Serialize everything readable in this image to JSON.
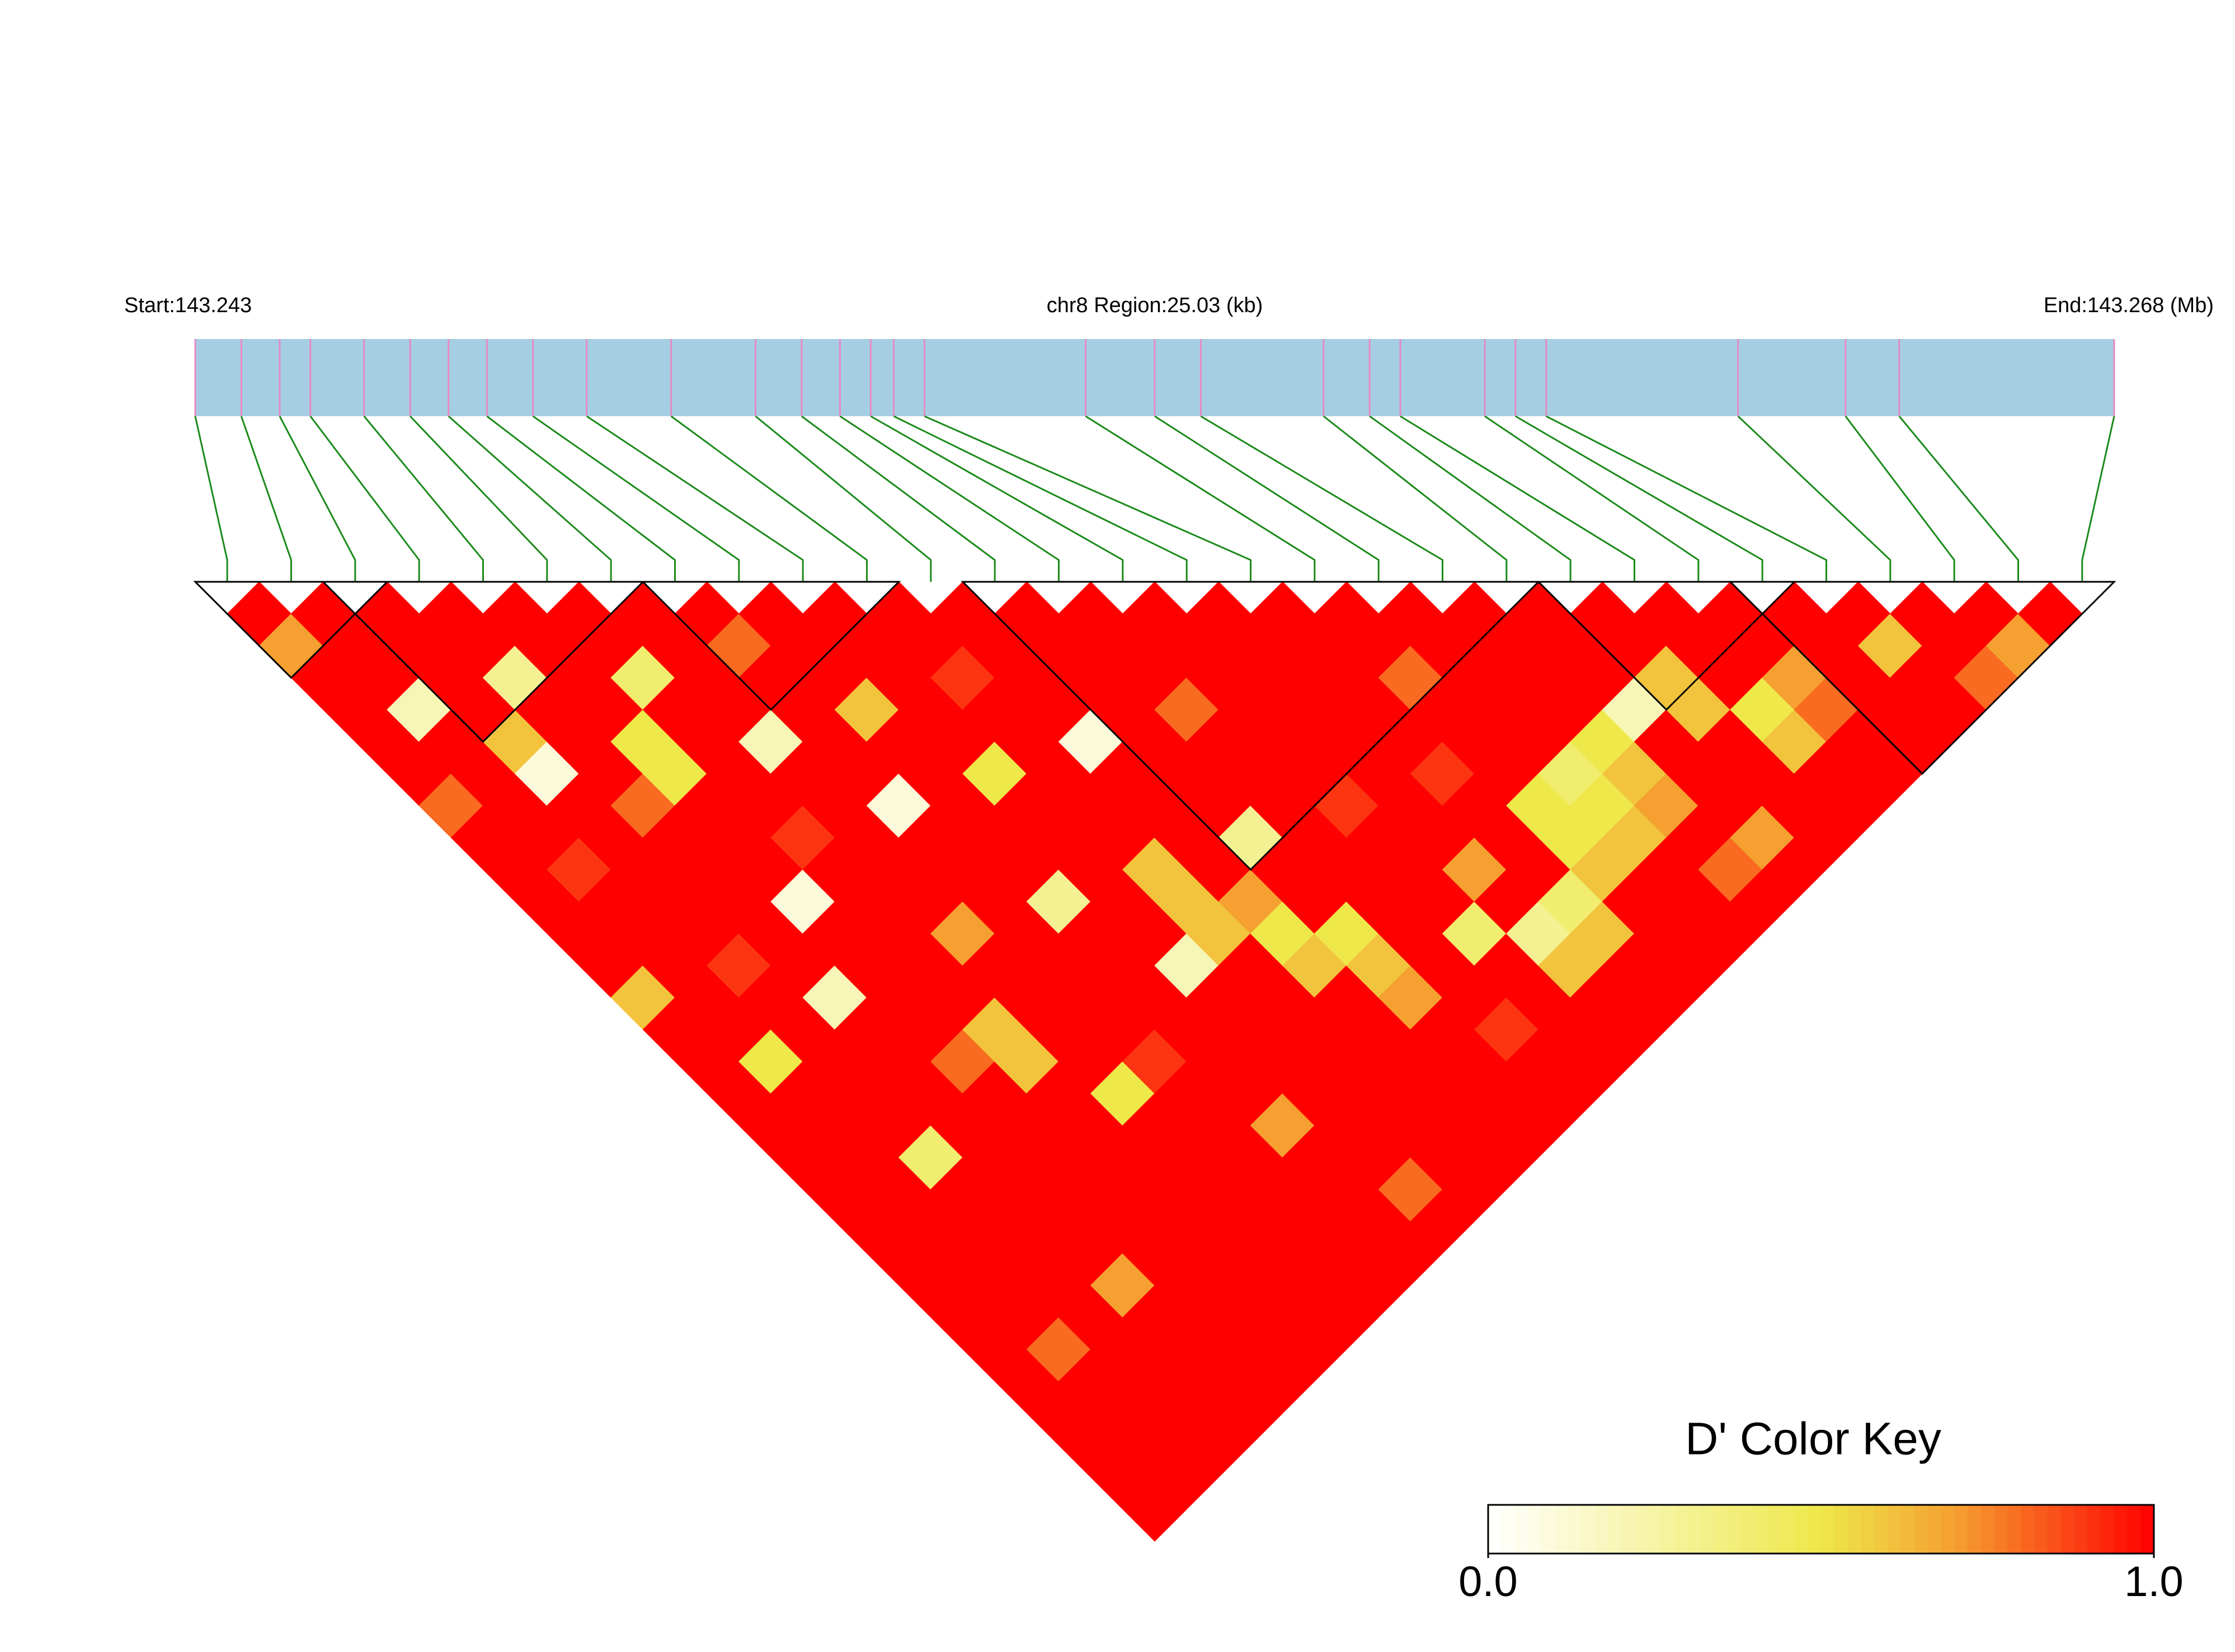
{
  "chart_data": {
    "type": "ld-heatmap",
    "start_label": "Start:143.243",
    "region_label": "chr8 Region:25.03 (kb)",
    "end_label": "End:143.268 (Mb)",
    "key_title": "D' Color Key",
    "xlim": [
      143.243,
      143.268
    ],
    "snp_positions": [
      143.243,
      143.2436,
      143.2441,
      143.2445,
      143.2452,
      143.2458,
      143.2463,
      143.2468,
      143.2474,
      143.2481,
      143.2492,
      143.2503,
      143.2509,
      143.2514,
      143.2518,
      143.2521,
      143.2525,
      143.2546,
      143.2555,
      143.2561,
      143.2577,
      143.2583,
      143.2587,
      143.2598,
      143.2602,
      143.2606,
      143.2631,
      143.2645,
      143.2652,
      143.268
    ],
    "dprime": [
      [
        1,
        0.7,
        1,
        1,
        1,
        1,
        0.8,
        1,
        1,
        1,
        1,
        1,
        0.6,
        1,
        1,
        1,
        1,
        1,
        1,
        1,
        1,
        1,
        1,
        1,
        1,
        1,
        1,
        1,
        1
      ],
      [
        1,
        1,
        1,
        0.2,
        1,
        1,
        1,
        1,
        0.9,
        1,
        1,
        1,
        1,
        1,
        0.5,
        1,
        1,
        1,
        1,
        1,
        1,
        1,
        1,
        0.8,
        1,
        1,
        1,
        1
      ],
      [
        1,
        1,
        1,
        1,
        0.6,
        0.1,
        1,
        1,
        1,
        1,
        1,
        0.9,
        1,
        1,
        1,
        1,
        1,
        0.4,
        1,
        1,
        1,
        1,
        1,
        1,
        1,
        1,
        1
      ],
      [
        1,
        1,
        0.3,
        1,
        1,
        1,
        0.8,
        1,
        1,
        1,
        1,
        1,
        0.2,
        1,
        1,
        1,
        1,
        1,
        1,
        1,
        1,
        0.7,
        1,
        1,
        1,
        1
      ],
      [
        1,
        1,
        1,
        1,
        0.5,
        0.5,
        1,
        1,
        1,
        0.1,
        1,
        1,
        1,
        1,
        0.8,
        1,
        1,
        1,
        1,
        1,
        1,
        1,
        1,
        1,
        1
      ],
      [
        1,
        1,
        0.4,
        1,
        1,
        1,
        1,
        0.9,
        1,
        1,
        1,
        1,
        1,
        0.6,
        0.6,
        1,
        1,
        1,
        1,
        1,
        1,
        1,
        1,
        1
      ],
      [
        1,
        1,
        1,
        1,
        0.2,
        1,
        1,
        1,
        1,
        1,
        0.7,
        1,
        1,
        1,
        1,
        0.5,
        1,
        1,
        1,
        1,
        1,
        1,
        1
      ],
      [
        1,
        0.8,
        1,
        1,
        1,
        1,
        0.1,
        1,
        1,
        1,
        1,
        1,
        1,
        1,
        0.9,
        1,
        1,
        1,
        1,
        1,
        1,
        1
      ],
      [
        1,
        1,
        1,
        0.6,
        1,
        1,
        1,
        1,
        1,
        0.3,
        1,
        1,
        1,
        1,
        1,
        1,
        0.7,
        1,
        1,
        1,
        1
      ],
      [
        1,
        1,
        1,
        1,
        1,
        0.5,
        1,
        1,
        1,
        1,
        1,
        0.2,
        1,
        1,
        1,
        1,
        1,
        1,
        0.8,
        1
      ],
      [
        1,
        1,
        0.9,
        1,
        1,
        1,
        1,
        1,
        0.6,
        0.6,
        0.6,
        1,
        1,
        1,
        1,
        1,
        1,
        1,
        1
      ],
      [
        1,
        1,
        1,
        1,
        0.1,
        1,
        1,
        1,
        1,
        0.7,
        0.5,
        0.6,
        1,
        1,
        1,
        1,
        1,
        1
      ],
      [
        1,
        1,
        1,
        1,
        1,
        1,
        1,
        0.3,
        1,
        1,
        0.5,
        0.6,
        0.7,
        1,
        1,
        1,
        1
      ],
      [
        1,
        1,
        1,
        0.8,
        1,
        1,
        1,
        1,
        1,
        1,
        1,
        1,
        1,
        0.9,
        1,
        1
      ],
      [
        1,
        1,
        1,
        1,
        1,
        1,
        0.9,
        1,
        1,
        1,
        0.4,
        1,
        1,
        1,
        1
      ],
      [
        1,
        1,
        1,
        1,
        1,
        1,
        1,
        1,
        0.7,
        1,
        0.3,
        0.6,
        1,
        1
      ],
      [
        1,
        1,
        1,
        1,
        1,
        0.9,
        1,
        1,
        1,
        0.4,
        0.6,
        1,
        1
      ],
      [
        1,
        1,
        0.8,
        1,
        1,
        1,
        0.5,
        0.5,
        0.6,
        1,
        1,
        1
      ],
      [
        1,
        1,
        1,
        1,
        1,
        0.4,
        0.5,
        0.6,
        1,
        1,
        1
      ],
      [
        1,
        1,
        1,
        1,
        0.5,
        0.6,
        0.7,
        1,
        0.8,
        1
      ],
      [
        1,
        1,
        1,
        0.2,
        1,
        1,
        1,
        0.7,
        1
      ],
      [
        1,
        1,
        0.6,
        0.6,
        1,
        1,
        1,
        1
      ],
      [
        1,
        1,
        1,
        0.5,
        0.6,
        1,
        1
      ],
      [
        1,
        1,
        0.7,
        0.8,
        1,
        1
      ],
      [
        1,
        1,
        1,
        1,
        1
      ],
      [
        1,
        0.6,
        1,
        1
      ],
      [
        1,
        1,
        0.8
      ],
      [
        1,
        0.7
      ],
      [
        1
      ]
    ],
    "blocks": [
      [
        0,
        2
      ],
      [
        2,
        6
      ],
      [
        7,
        10
      ],
      [
        12,
        20
      ],
      [
        21,
        24
      ],
      [
        24,
        29
      ]
    ],
    "colorscale": [
      [
        0,
        "#ffffff"
      ],
      [
        0.5,
        "#eee84a"
      ],
      [
        0.7,
        "#f5a031"
      ],
      [
        1,
        "#ff0000"
      ]
    ],
    "key_ticks": [
      {
        "value": 0,
        "label": "0.0"
      },
      {
        "value": 1,
        "label": "1.0"
      }
    ]
  }
}
